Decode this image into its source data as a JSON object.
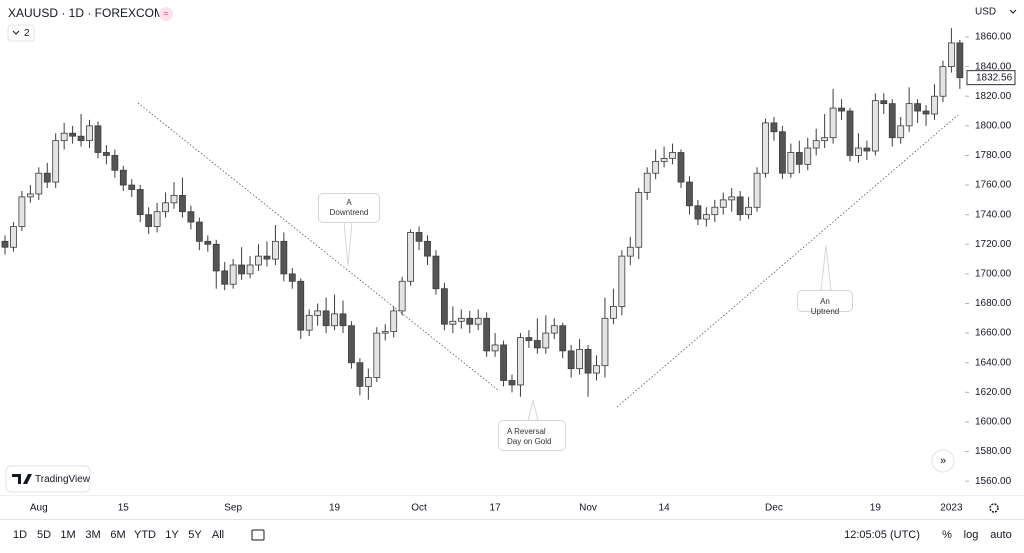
{
  "header": {
    "symbol": "XAUUSD · 1D · FOREXCOM",
    "indicator_count": "2"
  },
  "chart_data": {
    "type": "candlestick",
    "currency": "USD",
    "categories": [
      null,
      null,
      null,
      null,
      "Aug",
      null,
      null,
      null,
      null,
      null,
      null,
      null,
      null,
      null,
      "15",
      null,
      null,
      null,
      null,
      null,
      null,
      null,
      null,
      null,
      null,
      null,
      null,
      "Sep",
      null,
      null,
      null,
      null,
      null,
      null,
      null,
      null,
      null,
      null,
      null,
      "19",
      null,
      null,
      null,
      null,
      null,
      null,
      null,
      null,
      null,
      "Oct",
      null,
      null,
      null,
      null,
      null,
      null,
      null,
      null,
      "17",
      null,
      null,
      null,
      null,
      null,
      null,
      null,
      null,
      null,
      null,
      "Nov",
      null,
      null,
      null,
      null,
      null,
      null,
      null,
      null,
      "14",
      null,
      null,
      null,
      null,
      null,
      null,
      null,
      null,
      null,
      null,
      null,
      null,
      "Dec",
      null,
      null,
      null,
      null,
      null,
      null,
      null,
      null,
      null,
      null,
      null,
      "19",
      null,
      null,
      null,
      null,
      null,
      null,
      null,
      null,
      "2023",
      null
    ],
    "open": [
      1722,
      1718,
      1732,
      1752,
      1754,
      1768,
      1762,
      1790,
      1795,
      1793,
      1790,
      1800,
      1782,
      1780,
      1770,
      1760,
      1757,
      1740,
      1732,
      1742,
      1748,
      1753,
      1742,
      1735,
      1722,
      1720,
      1702,
      1693,
      1706,
      1700,
      1706,
      1712,
      1710,
      1722,
      1700,
      1695,
      1662,
      1672,
      1675,
      1665,
      1673,
      1665,
      1640,
      1624,
      1630,
      1660,
      1661,
      1675,
      1695,
      1728,
      1722,
      1712,
      1690,
      1666,
      1668,
      1670,
      1666,
      1670,
      1648,
      1652,
      1628,
      1625,
      1657,
      1655,
      1650,
      1660,
      1665,
      1648,
      1636,
      1649,
      1633,
      1638,
      1670,
      1678,
      1712,
      1718,
      1755,
      1768,
      1776,
      1778,
      1782,
      1762,
      1746,
      1737,
      1740,
      1745,
      1750,
      1752,
      1740,
      1745,
      1768,
      1802,
      1796,
      1768,
      1782,
      1774,
      1785,
      1790,
      1792,
      1812,
      1810,
      1780,
      1785,
      1783,
      1817,
      1815,
      1792,
      1800,
      1815,
      1810,
      1808,
      1820,
      1840,
      1856
    ],
    "high": [
      1726,
      1735,
      1756,
      1760,
      1772,
      1775,
      1795,
      1802,
      1800,
      1808,
      1804,
      1803,
      1787,
      1784,
      1773,
      1764,
      1760,
      1745,
      1748,
      1755,
      1762,
      1765,
      1746,
      1738,
      1726,
      1723,
      1708,
      1710,
      1718,
      1712,
      1720,
      1722,
      1733,
      1728,
      1704,
      1697,
      1676,
      1680,
      1684,
      1686,
      1682,
      1668,
      1643,
      1636,
      1664,
      1666,
      1678,
      1698,
      1730,
      1732,
      1726,
      1716,
      1694,
      1678,
      1676,
      1675,
      1676,
      1674,
      1660,
      1655,
      1632,
      1660,
      1662,
      1670,
      1672,
      1670,
      1667,
      1652,
      1656,
      1652,
      1645,
      1684,
      1690,
      1716,
      1725,
      1758,
      1772,
      1784,
      1786,
      1788,
      1784,
      1766,
      1750,
      1745,
      1750,
      1755,
      1758,
      1756,
      1752,
      1772,
      1805,
      1806,
      1800,
      1788,
      1790,
      1792,
      1798,
      1808,
      1825,
      1818,
      1812,
      1795,
      1790,
      1822,
      1822,
      1818,
      1806,
      1826,
      1818,
      1814,
      1828,
      1844,
      1866,
      1858
    ],
    "low": [
      1713,
      1715,
      1729,
      1748,
      1750,
      1758,
      1758,
      1784,
      1788,
      1786,
      1785,
      1778,
      1774,
      1765,
      1756,
      1752,
      1735,
      1727,
      1728,
      1738,
      1744,
      1738,
      1730,
      1716,
      1715,
      1690,
      1689,
      1690,
      1696,
      1697,
      1702,
      1705,
      1706,
      1695,
      1690,
      1656,
      1658,
      1665,
      1660,
      1662,
      1660,
      1636,
      1618,
      1615,
      1627,
      1655,
      1657,
      1672,
      1692,
      1716,
      1706,
      1686,
      1662,
      1660,
      1663,
      1660,
      1662,
      1644,
      1644,
      1624,
      1620,
      1617,
      1650,
      1646,
      1646,
      1656,
      1643,
      1630,
      1632,
      1617,
      1628,
      1630,
      1666,
      1672,
      1706,
      1710,
      1750,
      1764,
      1772,
      1774,
      1758,
      1740,
      1733,
      1732,
      1735,
      1740,
      1742,
      1736,
      1737,
      1742,
      1765,
      1790,
      1764,
      1765,
      1768,
      1770,
      1780,
      1785,
      1788,
      1804,
      1776,
      1775,
      1777,
      1780,
      1808,
      1786,
      1788,
      1796,
      1802,
      1800,
      1804,
      1816,
      1836,
      1825
    ],
    "close": [
      1718,
      1732,
      1752,
      1754,
      1768,
      1762,
      1790,
      1795,
      1793,
      1790,
      1800,
      1782,
      1780,
      1770,
      1760,
      1757,
      1740,
      1732,
      1742,
      1748,
      1753,
      1742,
      1735,
      1722,
      1720,
      1702,
      1693,
      1706,
      1700,
      1706,
      1712,
      1710,
      1722,
      1700,
      1695,
      1662,
      1672,
      1675,
      1665,
      1673,
      1665,
      1640,
      1624,
      1630,
      1660,
      1661,
      1675,
      1695,
      1728,
      1722,
      1712,
      1690,
      1666,
      1668,
      1670,
      1666,
      1670,
      1648,
      1652,
      1628,
      1625,
      1657,
      1655,
      1650,
      1660,
      1665,
      1648,
      1636,
      1649,
      1633,
      1638,
      1670,
      1678,
      1712,
      1718,
      1755,
      1768,
      1776,
      1778,
      1782,
      1762,
      1746,
      1737,
      1740,
      1745,
      1750,
      1752,
      1740,
      1745,
      1768,
      1802,
      1796,
      1768,
      1782,
      1774,
      1785,
      1790,
      1792,
      1812,
      1810,
      1780,
      1785,
      1783,
      1817,
      1815,
      1792,
      1800,
      1815,
      1810,
      1808,
      1820,
      1840,
      1856,
      1832.56
    ],
    "up_color": "#e4e4e4",
    "down_color": "#555555",
    "wick_color": "#3c3c3c",
    "ylim": [
      1552,
      1885
    ],
    "yticks": [
      {
        "value": 1560,
        "label": "1560.00"
      },
      {
        "value": 1580,
        "label": "1580.00"
      },
      {
        "value": 1600,
        "label": "1600.00"
      },
      {
        "value": 1620,
        "label": "1620.00"
      },
      {
        "value": 1640,
        "label": "1640.00"
      },
      {
        "value": 1660,
        "label": "1660.00"
      },
      {
        "value": 1680,
        "label": "1680.00"
      },
      {
        "value": 1700,
        "label": "1700.00"
      },
      {
        "value": 1720,
        "label": "1720.00"
      },
      {
        "value": 1740,
        "label": "1740.00"
      },
      {
        "value": 1760,
        "label": "1760.00"
      },
      {
        "value": 1780,
        "label": "1780.00"
      },
      {
        "value": 1800,
        "label": "1800.00"
      },
      {
        "value": 1820,
        "label": "1820.00"
      },
      {
        "value": 1840,
        "label": "1840.00"
      },
      {
        "value": 1860,
        "label": "1860.00"
      }
    ],
    "grid": false,
    "annotations": [
      "A Downtrend",
      "An Uptrend",
      "A Reversal Day on Gold"
    ]
  },
  "branding": "TradingView",
  "toolbar": {
    "ranges": [
      "1D",
      "5D",
      "1M",
      "3M",
      "6M",
      "YTD",
      "1Y",
      "5Y",
      "All"
    ],
    "time": "12:05:05 (UTC)",
    "options": [
      "%",
      "log",
      "auto"
    ]
  }
}
